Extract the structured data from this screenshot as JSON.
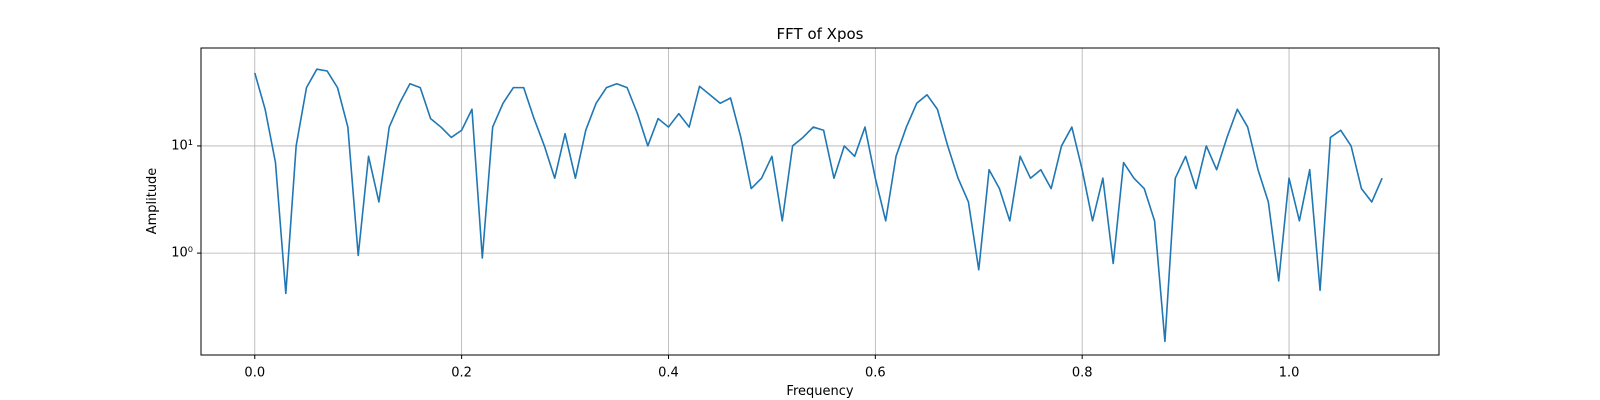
{
  "chart_data": {
    "type": "line",
    "title": "FFT of Xpos",
    "xlabel": "Frequency",
    "ylabel": "Amplitude",
    "log_y": true,
    "grid": true,
    "x": [
      0.0,
      0.01,
      0.02,
      0.03,
      0.04,
      0.05,
      0.06,
      0.07,
      0.08,
      0.09,
      0.1,
      0.11,
      0.12,
      0.13,
      0.14,
      0.15,
      0.16,
      0.17,
      0.18,
      0.19,
      0.2,
      0.21,
      0.22,
      0.23,
      0.24,
      0.25,
      0.26,
      0.27,
      0.28,
      0.29,
      0.3,
      0.31,
      0.32,
      0.33,
      0.34,
      0.35,
      0.36,
      0.37,
      0.38,
      0.39,
      0.4,
      0.41,
      0.42,
      0.43,
      0.44,
      0.45,
      0.46,
      0.47,
      0.48,
      0.49,
      0.5,
      0.51,
      0.52,
      0.53,
      0.54,
      0.55,
      0.56,
      0.57,
      0.58,
      0.59,
      0.6,
      0.61,
      0.62,
      0.63,
      0.64,
      0.65,
      0.66,
      0.67,
      0.68,
      0.69,
      0.7,
      0.71,
      0.72,
      0.73,
      0.74,
      0.75,
      0.76,
      0.77,
      0.78,
      0.79,
      0.8,
      0.81,
      0.82,
      0.83,
      0.84,
      0.85,
      0.86,
      0.87,
      0.88,
      0.89,
      0.9,
      0.91,
      0.92,
      0.93,
      0.94,
      0.95,
      0.96,
      0.97,
      0.98,
      0.99,
      1.0,
      1.01,
      1.02,
      1.03,
      1.04,
      1.05,
      1.06,
      1.07,
      1.08,
      1.09
    ],
    "series": [
      {
        "color": "#1f77b4",
        "values": [
          48,
          22,
          7,
          0.42,
          10,
          35,
          52,
          50,
          35,
          15,
          0.95,
          8,
          3,
          15,
          25,
          38,
          35,
          18,
          15,
          12,
          14,
          22,
          0.9,
          15,
          25,
          35,
          35,
          18,
          10,
          5,
          13,
          5,
          14,
          25,
          35,
          38,
          35,
          20,
          10,
          18,
          15,
          20,
          15,
          36,
          30,
          25,
          28,
          12,
          4,
          5,
          8,
          2,
          10,
          12,
          15,
          14,
          5,
          10,
          8,
          15,
          5,
          2,
          8,
          15,
          25,
          30,
          22,
          10,
          5,
          3,
          0.7,
          6,
          4,
          2,
          8,
          5,
          6,
          4,
          10,
          15,
          6,
          2,
          5,
          0.8,
          7,
          5,
          4,
          2,
          0.15,
          5,
          8,
          4,
          10,
          6,
          12,
          22,
          15,
          6,
          3,
          0.55,
          5,
          2,
          6,
          0.45,
          12,
          14,
          10,
          4,
          3,
          5
        ]
      }
    ],
    "xlim": [
      -0.052,
      1.145
    ],
    "xticks": [
      {
        "value": 0,
        "label": "0.0"
      },
      0.2,
      0.4,
      0.6,
      0.8,
      {
        "value": 1,
        "label": "1.0"
      }
    ],
    "ylim": [
      0.112,
      82
    ],
    "yticks": [
      {
        "value": 1,
        "label": "10⁰"
      },
      {
        "value": 10,
        "label": "10¹"
      }
    ]
  }
}
